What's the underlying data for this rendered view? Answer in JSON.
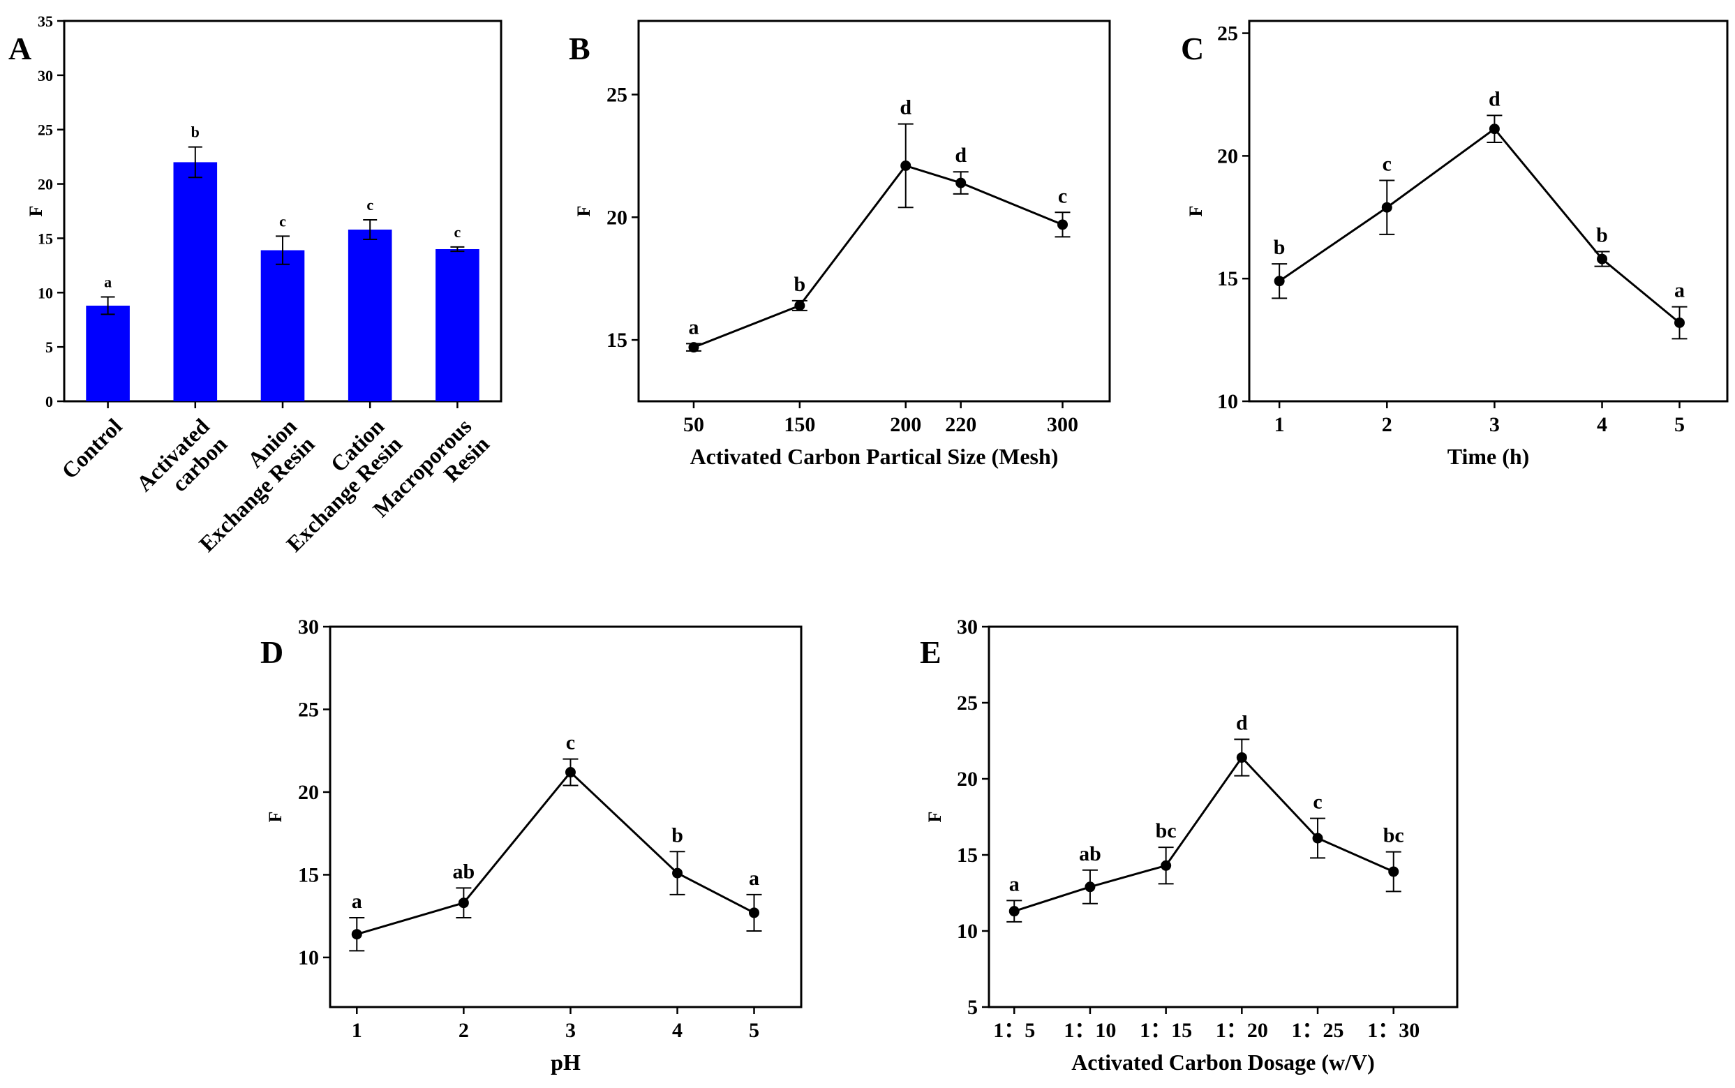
{
  "colors": {
    "bar": "#0000ff",
    "ink": "#000000",
    "background": "#ffffff"
  },
  "chart_data": [
    {
      "panel": "A",
      "type": "bar",
      "ylabel": "F",
      "xlabel": "",
      "ylim": [
        0,
        35
      ],
      "yticks": [
        0,
        5,
        10,
        15,
        20,
        25,
        30,
        35
      ],
      "categories": [
        "Control",
        "Activated\ncarbon",
        "Anion\nExchange Resin",
        "Cation\nExchange Resin",
        "Macroporous\nResin"
      ],
      "values": [
        8.8,
        22.0,
        13.9,
        15.8,
        14.0
      ],
      "errors": [
        0.8,
        1.4,
        1.3,
        0.9,
        0.2
      ],
      "labels": [
        "a",
        "b",
        "c",
        "c",
        "c"
      ],
      "grid": false
    },
    {
      "panel": "B",
      "type": "line",
      "ylabel": "F",
      "xlabel": "Activated Carbon Partical Size (Mesh)",
      "ylim": [
        12.5,
        28
      ],
      "yticks": [
        15,
        20,
        25
      ],
      "categories": [
        "50",
        "150",
        "200",
        "220",
        "300"
      ],
      "values": [
        14.7,
        16.4,
        22.1,
        21.4,
        19.7
      ],
      "errors": [
        0.15,
        0.2,
        1.7,
        0.45,
        0.5
      ],
      "labels": [
        "a",
        "b",
        "d",
        "d",
        "c"
      ],
      "grid": false
    },
    {
      "panel": "C",
      "type": "line",
      "ylabel": "F",
      "xlabel": "Time (h)",
      "ylim": [
        10,
        25.5
      ],
      "yticks": [
        10,
        15,
        20,
        25
      ],
      "categories": [
        "1",
        "2",
        "3",
        "4",
        "5"
      ],
      "values": [
        14.9,
        17.9,
        21.1,
        15.8,
        13.2
      ],
      "errors": [
        0.7,
        1.1,
        0.55,
        0.3,
        0.65
      ],
      "labels": [
        "b",
        "c",
        "d",
        "b",
        "a"
      ],
      "grid": false
    },
    {
      "panel": "D",
      "type": "line",
      "ylabel": "F",
      "xlabel": "pH",
      "ylim": [
        7,
        30
      ],
      "yticks": [
        10,
        15,
        20,
        25,
        30
      ],
      "categories": [
        "1",
        "2",
        "3",
        "4",
        "5"
      ],
      "values": [
        11.4,
        13.3,
        21.2,
        15.1,
        12.7
      ],
      "errors": [
        1.0,
        0.9,
        0.8,
        1.3,
        1.1
      ],
      "labels": [
        "a",
        "ab",
        "c",
        "b",
        "a"
      ],
      "grid": false
    },
    {
      "panel": "E",
      "type": "line",
      "ylabel": "F",
      "xlabel": "Activated Carbon Dosage (w/V)",
      "ylim": [
        5,
        30
      ],
      "yticks": [
        5,
        10,
        15,
        20,
        25,
        30
      ],
      "categories": [
        "1：5",
        "1：10",
        "1：15",
        "1：20",
        "1：25",
        "1：30"
      ],
      "values": [
        11.3,
        12.9,
        14.3,
        21.4,
        16.1,
        13.9
      ],
      "errors": [
        0.7,
        1.1,
        1.2,
        1.2,
        1.3,
        1.3
      ],
      "labels": [
        "a",
        "ab",
        "bc",
        "d",
        "c",
        "bc"
      ],
      "grid": false
    }
  ]
}
